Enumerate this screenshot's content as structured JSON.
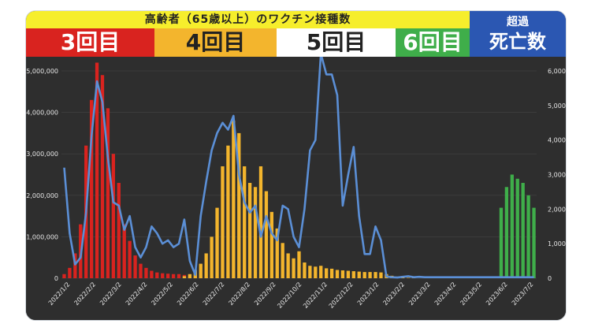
{
  "header": {
    "title": "高齢者（65歳以上）のワクチン接種数",
    "dose3": "3回目",
    "dose4": "4回目",
    "dose5": "5回目",
    "dose6": "6回目",
    "excess_line1": "超過",
    "excess_line2": "死亡数"
  },
  "colors": {
    "dose3": "#d9231f",
    "dose4": "#f3b52d",
    "dose5": "#ffffff",
    "dose6": "#3fae4a",
    "excess": "#5b8fd6"
  },
  "chart_data": {
    "type": "bar",
    "left_axis": {
      "ylim": [
        0,
        5000000
      ],
      "ticks": [
        "0",
        "1,000,000",
        "2,000,000",
        "3,000,000",
        "4,000,000",
        "5,000,000"
      ]
    },
    "right_axis": {
      "ylim": [
        0,
        6000
      ],
      "ticks": [
        "0",
        "1,000",
        "2,000",
        "3,000",
        "4,000",
        "5,000",
        "6,000"
      ]
    },
    "x_labels": [
      "2022/1/2",
      "2022/2/2",
      "2022/3/2",
      "2022/4/2",
      "2022/5/2",
      "2022/6/2",
      "2022/7/2",
      "2022/8/2",
      "2022/9/2",
      "2022/10/2",
      "2022/11/2",
      "2022/12/2",
      "2023/1/2",
      "2023/2/2",
      "2023/3/2",
      "2023/4/2",
      "2023/5/2",
      "2023/6/2",
      "2023/7/2"
    ],
    "series": [
      {
        "key": "dose3",
        "values": [
          100000,
          250000,
          600000,
          1300000,
          3200000,
          4300000,
          5200000,
          4900000,
          4100000,
          3000000,
          2300000,
          1300000,
          900000,
          550000,
          350000,
          250000,
          180000,
          140000,
          120000,
          110000,
          100000,
          100000,
          80000,
          60000,
          50000,
          40000,
          30000,
          30000,
          20000,
          20000,
          20000,
          20000,
          10000,
          10000,
          10000,
          10000,
          10000,
          10000,
          10000,
          10000,
          10000,
          10000,
          10000,
          10000,
          10000,
          10000,
          10000,
          10000,
          10000,
          10000,
          10000,
          10000,
          10000,
          10000,
          10000,
          10000,
          10000,
          10000,
          10000,
          10000,
          0,
          0,
          0,
          0,
          0,
          0,
          0,
          0,
          0,
          0,
          0,
          0,
          0,
          0,
          0,
          0,
          0,
          0,
          0,
          0,
          0,
          0,
          0,
          0,
          0,
          0,
          0
        ]
      },
      {
        "key": "dose4",
        "values": [
          0,
          0,
          0,
          0,
          0,
          0,
          0,
          0,
          0,
          0,
          0,
          0,
          0,
          0,
          0,
          0,
          0,
          0,
          0,
          0,
          0,
          0,
          50000,
          100000,
          200000,
          350000,
          600000,
          1000000,
          1700000,
          2700000,
          3200000,
          3800000,
          3500000,
          2700000,
          2300000,
          2200000,
          2700000,
          2100000,
          1600000,
          1200000,
          850000,
          600000,
          480000,
          650000,
          380000,
          300000,
          280000,
          300000,
          240000,
          230000,
          200000,
          190000,
          180000,
          170000,
          160000,
          150000,
          150000,
          150000,
          140000,
          100000,
          60000,
          40000,
          20000,
          10000,
          10000,
          0,
          0,
          0,
          0,
          0,
          0,
          0,
          0,
          0,
          0,
          0,
          0,
          0,
          0,
          0,
          0,
          0,
          0,
          0,
          0,
          0,
          0
        ]
      },
      {
        "key": "dose5",
        "values": [
          0,
          0,
          0,
          0,
          0,
          0,
          0,
          0,
          0,
          0,
          0,
          0,
          0,
          0,
          0,
          0,
          0,
          0,
          0,
          0,
          0,
          0,
          0,
          0,
          0,
          0,
          0,
          0,
          0,
          0,
          0,
          0,
          0,
          0,
          0,
          0,
          0,
          0,
          0,
          0,
          0,
          0,
          0,
          0,
          0,
          0,
          0,
          0,
          0,
          0,
          0,
          0,
          0,
          0,
          0,
          0,
          0,
          0,
          0,
          0,
          0,
          0,
          0,
          0,
          0,
          0,
          0,
          0,
          0,
          0,
          0,
          0,
          0,
          0,
          0,
          0,
          0,
          0,
          0,
          0,
          0,
          0,
          0,
          0,
          0,
          0,
          0
        ]
      },
      {
        "key": "dose6",
        "values": [
          0,
          0,
          0,
          0,
          0,
          0,
          0,
          0,
          0,
          0,
          0,
          0,
          0,
          0,
          0,
          0,
          0,
          0,
          0,
          0,
          0,
          0,
          0,
          0,
          0,
          0,
          0,
          0,
          0,
          0,
          0,
          0,
          0,
          0,
          0,
          0,
          0,
          0,
          0,
          0,
          0,
          0,
          0,
          0,
          0,
          0,
          0,
          0,
          0,
          0,
          0,
          0,
          0,
          0,
          0,
          0,
          0,
          0,
          0,
          0,
          0,
          0,
          0,
          0,
          0,
          0,
          0,
          0,
          0,
          0,
          0,
          0,
          0,
          0,
          0,
          0,
          0,
          0,
          0,
          0,
          1700000,
          2200000,
          2500000,
          2400000,
          2300000,
          2000000,
          1700000
        ]
      },
      {
        "key": "excess",
        "values": [
          3200,
          1300,
          400,
          600,
          1900,
          4100,
          5700,
          5100,
          3500,
          2200,
          2100,
          1400,
          1800,
          900,
          600,
          900,
          1500,
          1300,
          1000,
          1100,
          900,
          1000,
          1700,
          500,
          100,
          1800,
          2800,
          3700,
          4200,
          4500,
          4300,
          4700,
          3000,
          2200,
          1900,
          2100,
          1200,
          1800,
          1300,
          1100,
          2100,
          2000,
          1200,
          900,
          2000,
          3700,
          4000,
          6500,
          5900,
          5900,
          5300,
          2100,
          3000,
          3800,
          1800,
          700,
          700,
          1500,
          1100,
          50,
          30,
          20,
          40,
          60,
          30,
          40,
          30,
          30,
          30,
          30,
          30,
          30,
          30,
          30,
          30,
          30,
          30,
          30,
          30,
          30,
          30,
          30,
          30,
          30,
          30,
          30,
          30
        ]
      }
    ]
  }
}
